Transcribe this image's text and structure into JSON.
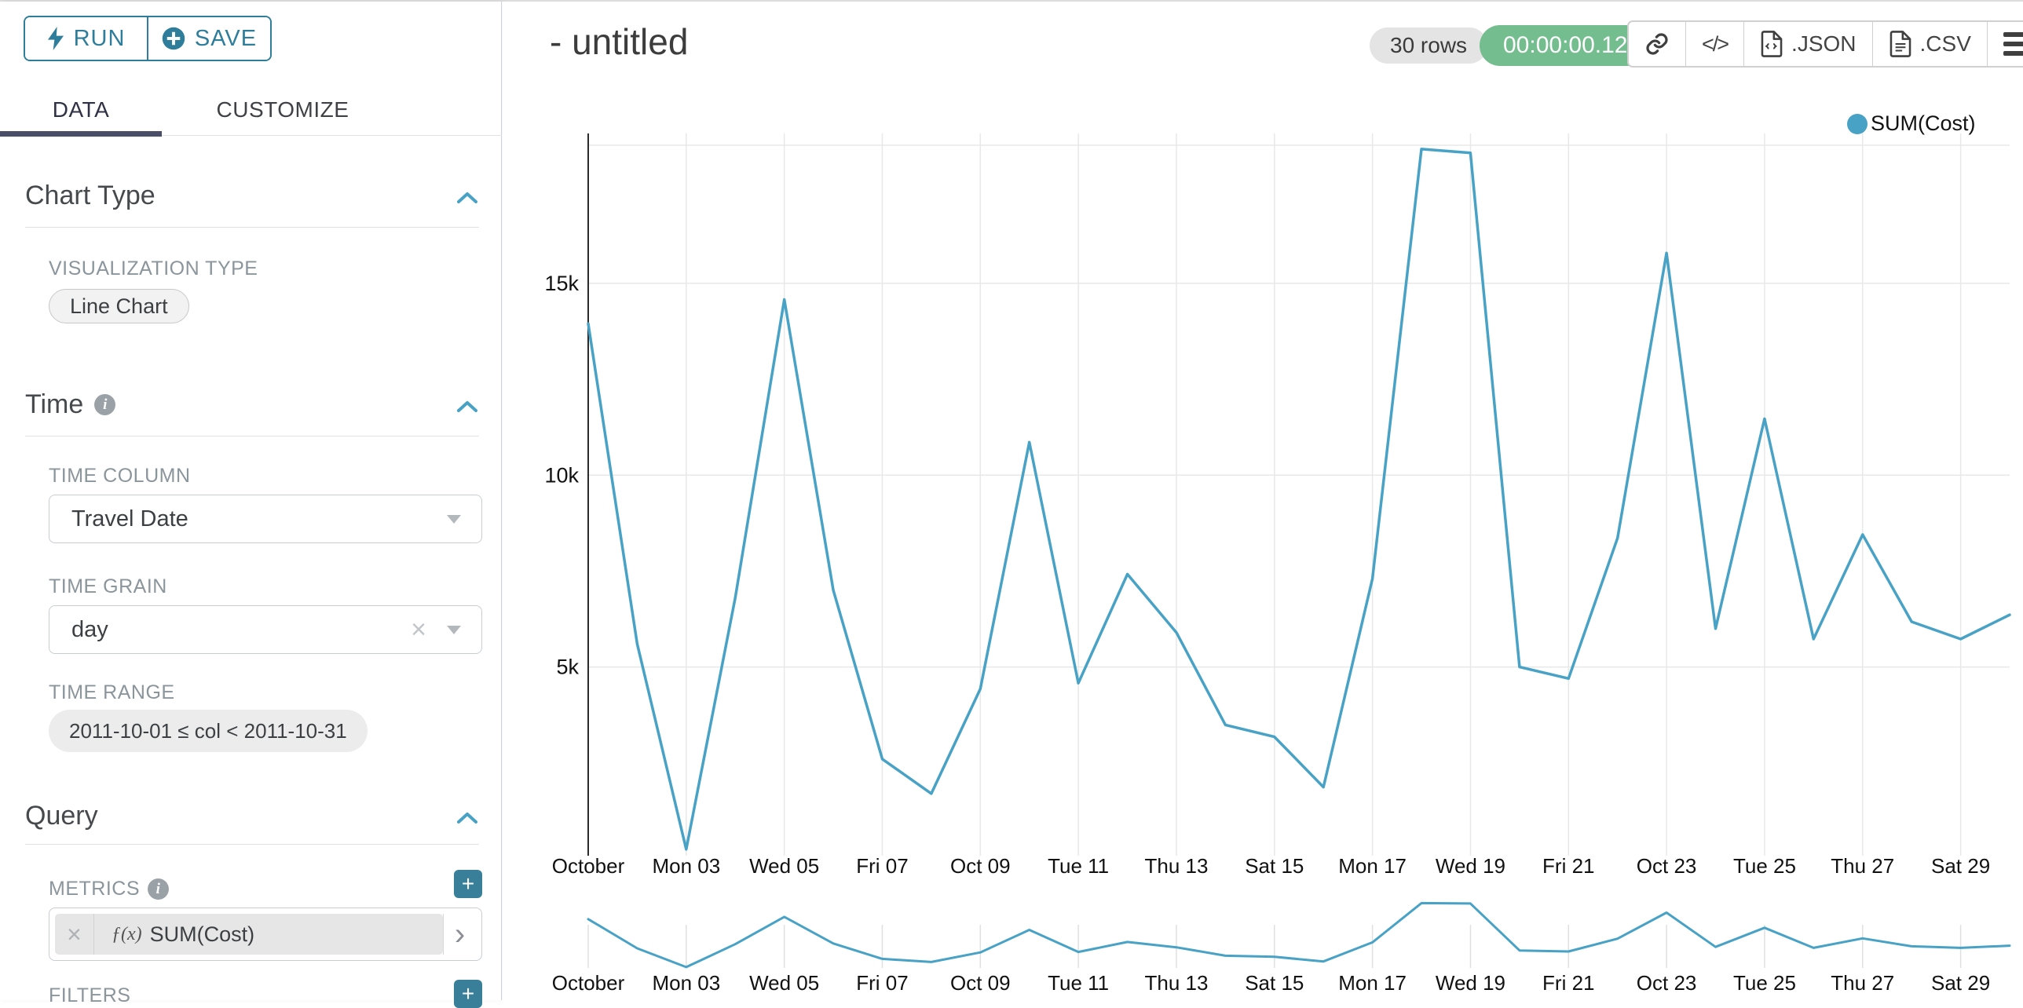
{
  "colors": {
    "accent_teal": "#48a2c6",
    "button_teal": "#2e7d9a",
    "add_button_teal": "#3a7f99",
    "timer_green": "#74bd8e",
    "tab_underline": "#4b4e67",
    "gridline": "#e8e8e8",
    "axis_line": "#2b2b2b"
  },
  "sidebar": {
    "run_label": "RUN",
    "save_label": "SAVE",
    "tabs": {
      "data": "DATA",
      "customize": "CUSTOMIZE"
    },
    "chart_type": {
      "title": "Chart Type",
      "viz_type_label": "VISUALIZATION TYPE",
      "viz_type_value": "Line Chart"
    },
    "time": {
      "title": "Time",
      "time_column_label": "TIME COLUMN",
      "time_column_value": "Travel Date",
      "time_grain_label": "TIME GRAIN",
      "time_grain_value": "day",
      "time_range_label": "TIME RANGE",
      "time_range_value": "2011-10-01 ≤ col < 2011-10-31"
    },
    "query": {
      "title": "Query",
      "metrics_label": "METRICS",
      "metric_fx_prefix": "ƒ(x)",
      "metric_value": "SUM(Cost)",
      "filters_label": "FILTERS"
    }
  },
  "header": {
    "title": "- untitled",
    "rows_badge": "30 rows",
    "timer_badge": "00:00:00.12",
    "json_label": ".JSON",
    "csv_label": ".CSV"
  },
  "chart_data": {
    "type": "line",
    "title": "- untitled",
    "x_start_date": "2011-10-01",
    "x_granularity": "day",
    "x_tick_labels": [
      "October",
      "Mon 03",
      "Wed 05",
      "Fri 07",
      "Oct 09",
      "Tue 11",
      "Thu 13",
      "Sat 15",
      "Mon 17",
      "Wed 19",
      "Fri 21",
      "Oct 23",
      "Tue 25",
      "Thu 27",
      "Sat 29"
    ],
    "y_ticks": [
      {
        "value": 5000,
        "label": "5k"
      },
      {
        "value": 10000,
        "label": "10k"
      },
      {
        "value": 15000,
        "label": "15k"
      }
    ],
    "ylim": [
      0,
      18600
    ],
    "grid": true,
    "legend": {
      "label": "SUM(Cost)",
      "position": "top-right"
    },
    "series": [
      {
        "name": "SUM(Cost)",
        "values": [
          13950,
          5600,
          250,
          6800,
          14580,
          7000,
          2600,
          1700,
          4430,
          10860,
          4580,
          7420,
          5900,
          3490,
          3180,
          1870,
          7300,
          18500,
          18400,
          5000,
          4700,
          8360,
          15790,
          6000,
          11470,
          5730,
          8450,
          6180,
          5730,
          6360
        ]
      }
    ],
    "has_range_selector_minichart": true
  }
}
